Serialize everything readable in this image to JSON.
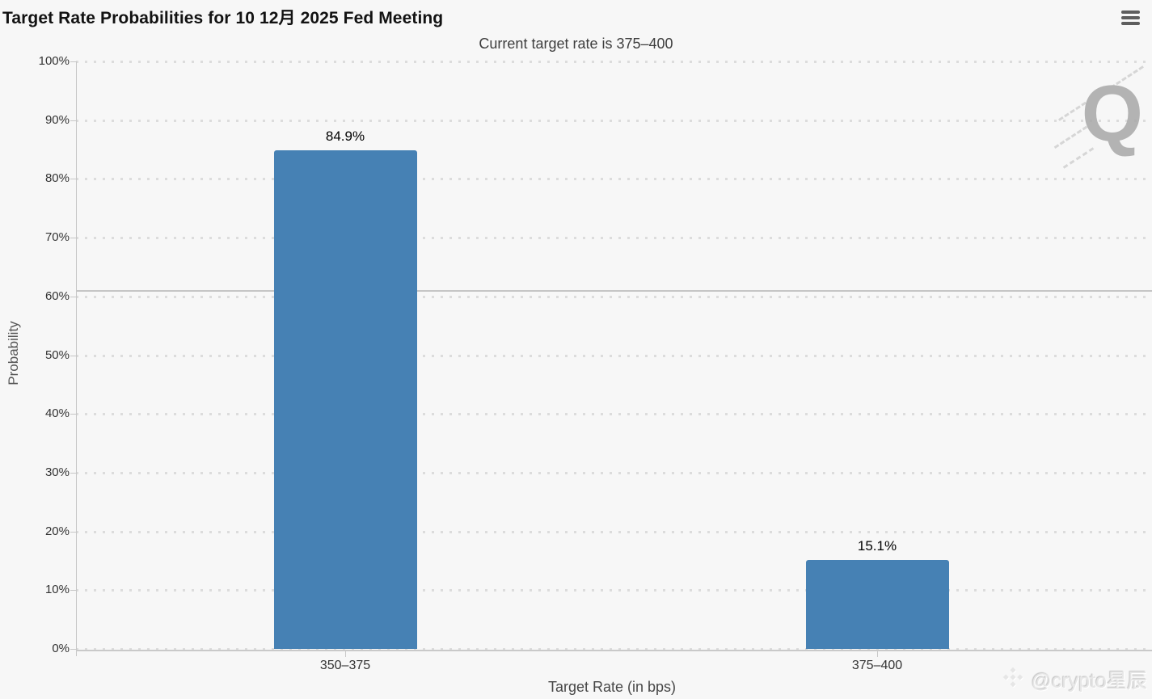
{
  "chart_data": {
    "type": "bar",
    "title": "Target Rate Probabilities for 10 12月 2025 Fed Meeting",
    "subtitle": "Current target rate is 375–400",
    "categories": [
      "350–375",
      "375–400"
    ],
    "values": [
      84.9,
      15.1
    ],
    "data_labels": [
      "84.9%",
      "15.1%"
    ],
    "xlabel": "Target Rate (in bps)",
    "ylabel": "Probability",
    "ylim": [
      0,
      100
    ],
    "ytick_step": 10,
    "ytick_labels": [
      "0%",
      "10%",
      "20%",
      "30%",
      "40%",
      "50%",
      "60%",
      "70%",
      "80%",
      "90%",
      "100%"
    ],
    "grid": "horizontal-dotted",
    "legend": "none",
    "reference_line": {
      "value": 61,
      "style": "solid"
    },
    "colors": {
      "bar": "#4681b4",
      "background": "#f7f7f7",
      "gridline": "#dcdcdc",
      "axis_line": "#c6c6c6",
      "title_text": "#121212",
      "subtitle_text": "#3d3d3d",
      "axis_text": "#333333",
      "menu_icon": "#5e5e5e",
      "watermark_gray": "#a8a8a8"
    }
  },
  "toolbar": {
    "menu_icon": "hamburger-menu-icon"
  },
  "watermarks": {
    "logo_letter": "Q",
    "credit_text": "@crypto星辰",
    "credit_logo": "binance-diamond-icon"
  }
}
